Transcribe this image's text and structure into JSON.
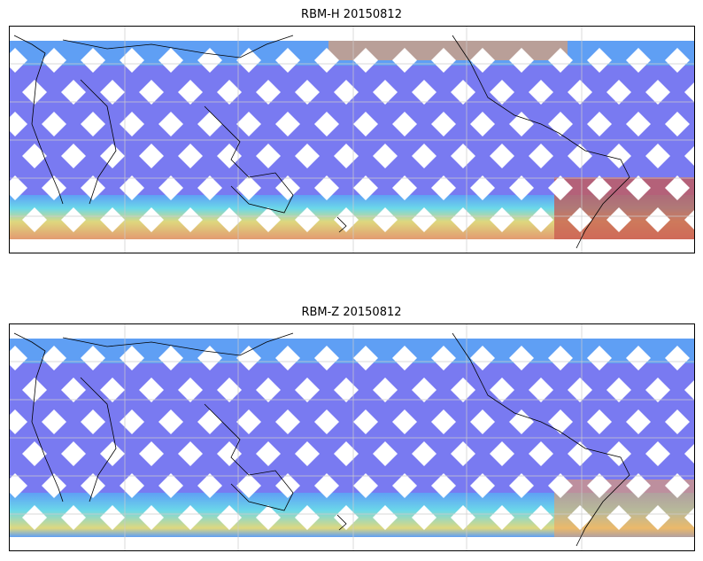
{
  "panels": [
    {
      "title": "RBM-H 20150812",
      "intensity": "high"
    },
    {
      "title": "RBM-Z 20150812",
      "intensity": "low"
    }
  ],
  "colors": {
    "low": "#6a6cf0",
    "mid_low": "#5aa6f5",
    "mid": "#68e8e8",
    "mid_high": "#f0e86a",
    "high": "#f5a05a",
    "very_high": "#c85a50",
    "grid": "#cccccc",
    "coast": "#000000"
  }
}
